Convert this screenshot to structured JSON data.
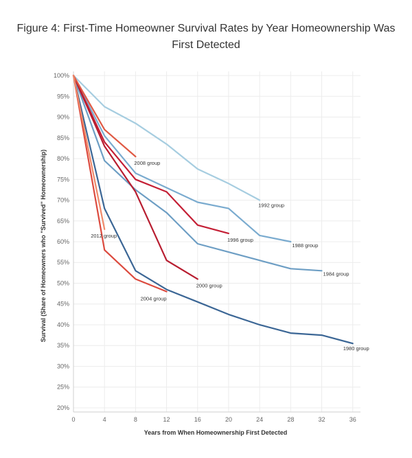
{
  "chart_data": {
    "type": "line",
    "title": "Figure 4: First-Time Homeowner Survival Rates by Year Homeownership Was First Detected",
    "xlabel": "Years from When Homeownership First Detected",
    "ylabel": "Survival (Share of Homeowners who \"Survived\" Homeownership)",
    "xlim": [
      0,
      37
    ],
    "ylim": [
      19,
      101
    ],
    "x_ticks": [
      0,
      4,
      8,
      12,
      16,
      20,
      24,
      28,
      32,
      36
    ],
    "y_ticks": [
      100,
      95,
      90,
      85,
      80,
      75,
      70,
      65,
      60,
      55,
      50,
      45,
      40,
      35,
      30,
      25,
      20
    ],
    "y_tick_suffix": "%",
    "grid": true,
    "legend": "direct labels at line ends",
    "series": [
      {
        "name": "1980 group",
        "color": "#3b6695",
        "points": [
          [
            0,
            100
          ],
          [
            4,
            68
          ],
          [
            8,
            53
          ],
          [
            12,
            48.5
          ],
          [
            16,
            45.5
          ],
          [
            20,
            42.5
          ],
          [
            24,
            40
          ],
          [
            28,
            38
          ],
          [
            32,
            37.5
          ],
          [
            36,
            35.5
          ]
        ]
      },
      {
        "name": "1984 group",
        "color": "#6d9ec4",
        "points": [
          [
            0,
            100
          ],
          [
            4,
            79.5
          ],
          [
            8,
            72.5
          ],
          [
            12,
            67
          ],
          [
            16,
            59.5
          ],
          [
            20,
            57.5
          ],
          [
            24,
            55.5
          ],
          [
            28,
            53.5
          ],
          [
            32,
            53
          ]
        ]
      },
      {
        "name": "1988 group",
        "color": "#7aabcf",
        "points": [
          [
            0,
            100
          ],
          [
            4,
            85.5
          ],
          [
            8,
            76.5
          ],
          [
            12,
            73
          ],
          [
            16,
            69.5
          ],
          [
            20,
            68
          ],
          [
            24,
            61.5
          ],
          [
            28,
            60
          ]
        ]
      },
      {
        "name": "1992 group",
        "color": "#a6cde0",
        "points": [
          [
            0,
            100
          ],
          [
            4,
            92.5
          ],
          [
            8,
            88.5
          ],
          [
            12,
            83.5
          ],
          [
            16,
            77.5
          ],
          [
            20,
            74
          ],
          [
            24,
            70
          ]
        ]
      },
      {
        "name": "1996 group",
        "color": "#c41f35",
        "points": [
          [
            0,
            100
          ],
          [
            4,
            84
          ],
          [
            8,
            75
          ],
          [
            12,
            72
          ],
          [
            16,
            64
          ],
          [
            20,
            62
          ]
        ]
      },
      {
        "name": "2000 group",
        "color": "#b81d30",
        "points": [
          [
            0,
            100
          ],
          [
            4,
            83
          ],
          [
            8,
            72
          ],
          [
            12,
            55.5
          ],
          [
            16,
            51
          ]
        ]
      },
      {
        "name": "2004 group",
        "color": "#dc4a3e",
        "points": [
          [
            0,
            100
          ],
          [
            4,
            58
          ],
          [
            8,
            51
          ],
          [
            12,
            48
          ]
        ]
      },
      {
        "name": "2008 group",
        "color": "#e05a44",
        "points": [
          [
            0,
            100
          ],
          [
            4,
            87
          ],
          [
            8,
            80.5
          ]
        ]
      },
      {
        "name": "2012 group",
        "color": "#ef8a6a",
        "points": [
          [
            0,
            100
          ],
          [
            4,
            63
          ]
        ]
      }
    ],
    "annotations": [
      {
        "series": "1980 group",
        "x": 36,
        "y": 35.5
      },
      {
        "series": "1984 group",
        "x": 32,
        "y": 53
      },
      {
        "series": "1988 group",
        "x": 28,
        "y": 60
      },
      {
        "series": "1992 group",
        "x": 24,
        "y": 70
      },
      {
        "series": "1996 group",
        "x": 20,
        "y": 62
      },
      {
        "series": "2000 group",
        "x": 16,
        "y": 51
      },
      {
        "series": "2004 group",
        "x": 12,
        "y": 48
      },
      {
        "series": "2008 group",
        "x": 8,
        "y": 80.5
      },
      {
        "series": "2012 group",
        "x": 4,
        "y": 63
      }
    ]
  }
}
